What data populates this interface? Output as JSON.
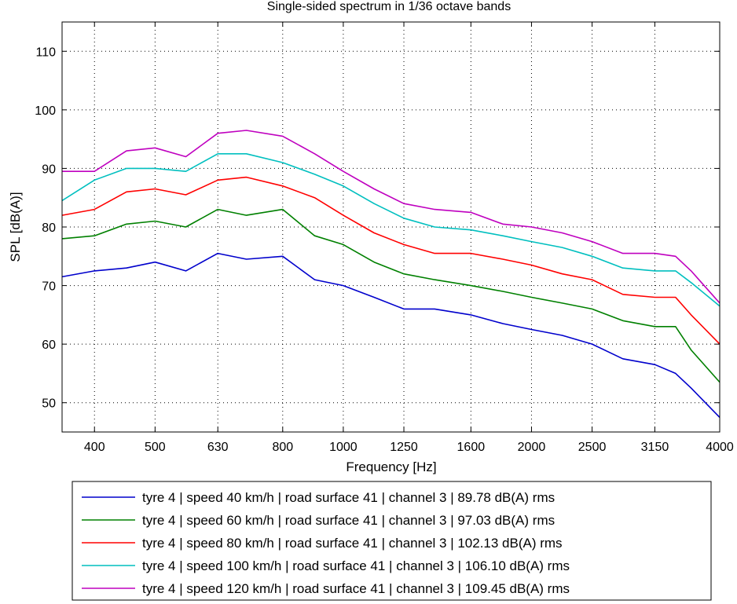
{
  "chart_data": {
    "type": "line",
    "title": "Single-sided spectrum in 1/36 octave bands",
    "xlabel": "Frequency [Hz]",
    "ylabel": "SPL [dB(A)]",
    "x_scale": "log",
    "xlim": [
      355,
      4000
    ],
    "ylim": [
      45,
      115
    ],
    "xticks": [
      400,
      500,
      630,
      800,
      1000,
      1250,
      1600,
      2000,
      2500,
      3150,
      4000
    ],
    "xtick_labels": [
      "400",
      "500",
      "630",
      "800",
      "1000",
      "1250",
      "1600",
      "2000",
      "2500",
      "3150",
      "4000"
    ],
    "yticks": [
      50,
      60,
      70,
      80,
      90,
      100,
      110
    ],
    "ytick_labels": [
      "50",
      "60",
      "70",
      "80",
      "90",
      "100",
      "110"
    ],
    "grid": true,
    "legend_position": "below",
    "x": [
      355,
      400,
      450,
      500,
      560,
      630,
      700,
      800,
      900,
      1000,
      1120,
      1250,
      1400,
      1600,
      1800,
      2000,
      2240,
      2500,
      2800,
      3150,
      3400,
      3600,
      4000
    ],
    "series": [
      {
        "name": "tyre 4 | speed 40 km/h | road surface 41 | channel 3 | 89.78 dB(A) rms",
        "color": "#0000cc",
        "values": [
          71.5,
          72.5,
          73.0,
          74.0,
          72.5,
          75.5,
          74.5,
          75.0,
          71.0,
          70.0,
          68.0,
          66.0,
          66.0,
          65.0,
          63.5,
          62.5,
          61.5,
          60.0,
          57.5,
          56.5,
          55.0,
          52.5,
          47.5
        ]
      },
      {
        "name": "tyre 4 | speed 60 km/h | road surface 41 | channel 3 | 97.03 dB(A) rms",
        "color": "#008000",
        "values": [
          78.0,
          78.5,
          80.5,
          81.0,
          80.0,
          83.0,
          82.0,
          83.0,
          78.5,
          77.0,
          74.0,
          72.0,
          71.0,
          70.0,
          69.0,
          68.0,
          67.0,
          66.0,
          64.0,
          63.0,
          63.0,
          59.0,
          53.5
        ]
      },
      {
        "name": "tyre 4 | speed 80 km/h | road surface 41 | channel 3 | 102.13 dB(A) rms",
        "color": "#ff0000",
        "values": [
          82.0,
          83.0,
          86.0,
          86.5,
          85.5,
          88.0,
          88.5,
          87.0,
          85.0,
          82.0,
          79.0,
          77.0,
          75.5,
          75.5,
          74.5,
          73.5,
          72.0,
          71.0,
          68.5,
          68.0,
          68.0,
          65.0,
          60.0
        ]
      },
      {
        "name": "tyre 4 | speed 100 km/h | road surface 41 | channel 3 | 106.10 dB(A) rms",
        "color": "#00bfbf",
        "values": [
          84.5,
          88.0,
          90.0,
          90.0,
          89.5,
          92.5,
          92.5,
          91.0,
          89.0,
          87.0,
          84.0,
          81.5,
          80.0,
          79.5,
          78.5,
          77.5,
          76.5,
          75.0,
          73.0,
          72.5,
          72.5,
          70.5,
          66.5
        ]
      },
      {
        "name": "tyre 4 | speed 120 km/h | road surface 41 | channel 3 | 109.45 dB(A) rms",
        "color": "#bf00bf",
        "values": [
          89.5,
          89.5,
          93.0,
          93.5,
          92.0,
          96.0,
          96.5,
          95.5,
          92.5,
          89.5,
          86.5,
          84.0,
          83.0,
          82.5,
          80.5,
          80.0,
          79.0,
          77.5,
          75.5,
          75.5,
          75.0,
          72.5,
          67.0
        ]
      }
    ]
  }
}
